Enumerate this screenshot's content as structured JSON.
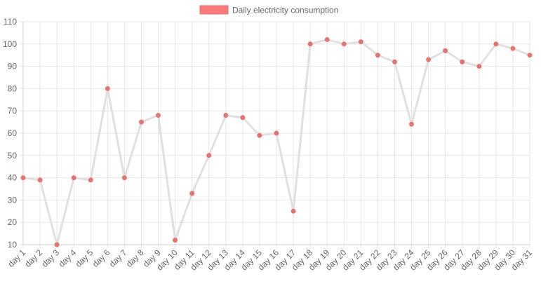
{
  "chart_data": {
    "type": "line",
    "categories": [
      "day 1",
      "day 2",
      "day 3",
      "day 4",
      "day 5",
      "day 6",
      "day 7",
      "day 8",
      "day 9",
      "day 10",
      "day 11",
      "day 12",
      "day 13",
      "day 14",
      "day 15",
      "day 16",
      "day 17",
      "day 18",
      "day 19",
      "day 20",
      "day 21",
      "day 22",
      "day 23",
      "day 24",
      "day 25",
      "day 26",
      "day 27",
      "day 28",
      "day 29",
      "day 30",
      "day 31"
    ],
    "series": [
      {
        "name": "Daily electricity consumption",
        "values": [
          40,
          39,
          10,
          40,
          39,
          80,
          40,
          65,
          68,
          12,
          33,
          50,
          68,
          67,
          59,
          60,
          25,
          100,
          102,
          100,
          101,
          95,
          92,
          64,
          93,
          97,
          92,
          90,
          100,
          98,
          95
        ],
        "line_color": "#e0e0e0",
        "point_color": "#e57373",
        "legend_color": "#f77c79"
      }
    ],
    "ylim": [
      10,
      110
    ],
    "yticks": [
      10,
      20,
      30,
      40,
      50,
      60,
      70,
      80,
      90,
      100,
      110
    ],
    "grid": true,
    "legend_position": "top-center",
    "title": "",
    "xlabel": "",
    "ylabel": ""
  }
}
